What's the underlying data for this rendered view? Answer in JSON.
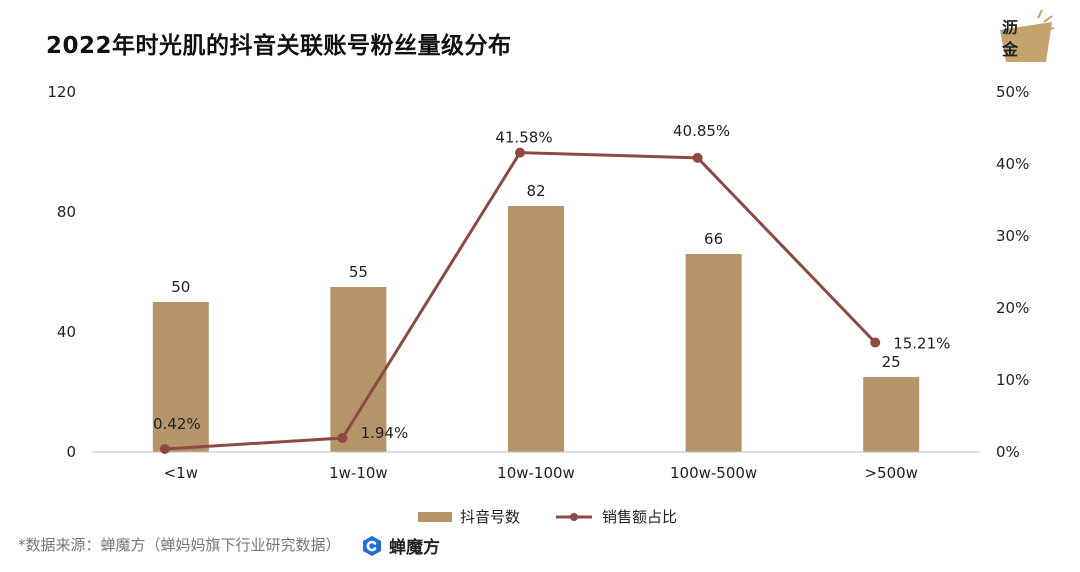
{
  "title": "2022年时光肌的抖音关联账号粉丝量级分布",
  "logo": {
    "line1": "沥",
    "line2": "金"
  },
  "source_note": "*数据来源：蝉魔方（蝉妈妈旗下行业研究数据）",
  "brand_name": "蝉魔方",
  "colors": {
    "bar": "#b5946a",
    "line": "#8c4a43",
    "brand": "#1f6fd6"
  },
  "chart_data": {
    "type": "bar",
    "categories": [
      "<1w",
      "1w-10w",
      "10w-100w",
      "100w-500w",
      ">500w"
    ],
    "series": [
      {
        "name": "抖音号数",
        "type": "bar",
        "axis": "left",
        "values": [
          50,
          55,
          82,
          66,
          25
        ],
        "labels": [
          "50",
          "55",
          "82",
          "66",
          "25"
        ]
      },
      {
        "name": "销售额占比",
        "type": "line",
        "axis": "right",
        "values": [
          0.42,
          1.94,
          41.58,
          40.85,
          15.21
        ],
        "labels": [
          "0.42%",
          "1.94%",
          "41.58%",
          "40.85%",
          "15.21%"
        ]
      }
    ],
    "y_left": {
      "range": [
        0,
        120
      ],
      "ticks": [
        "0",
        "40",
        "80",
        "120"
      ]
    },
    "y_right": {
      "range": [
        0,
        50
      ],
      "ticks": [
        "0%",
        "10%",
        "20%",
        "30%",
        "40%",
        "50%"
      ]
    },
    "grid": false,
    "legend_position": "bottom"
  }
}
